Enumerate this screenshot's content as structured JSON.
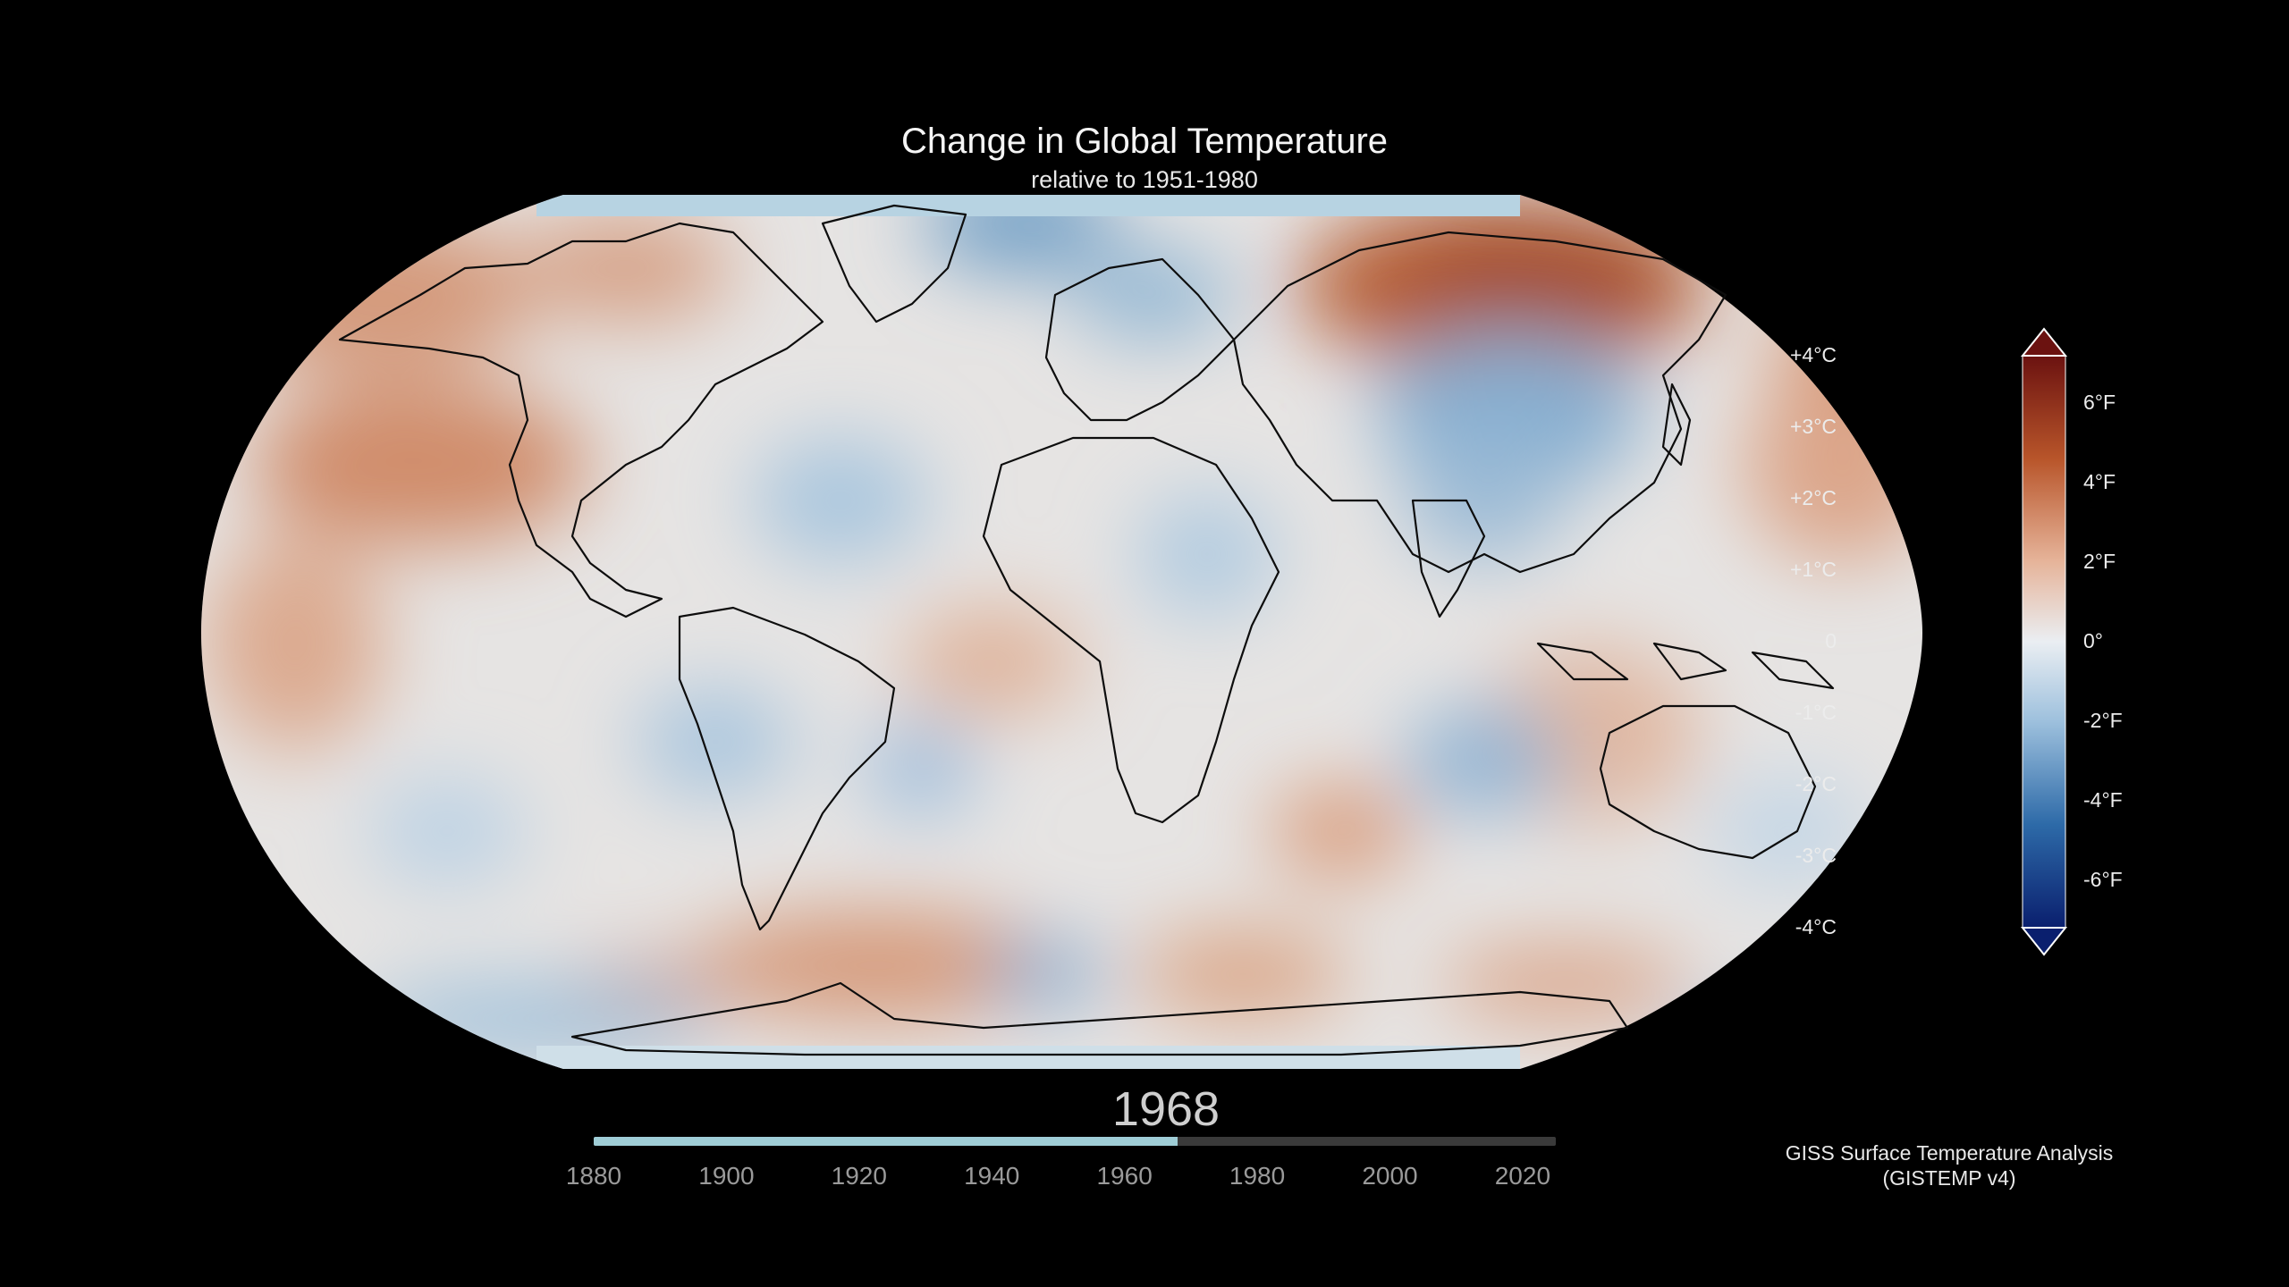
{
  "title": "Change in Global Temperature",
  "subtitle": "relative to 1951-1980",
  "year": "1968",
  "timeline": {
    "start": 1880,
    "end": 2025,
    "current": 1968,
    "ticks": [
      "1880",
      "1900",
      "1920",
      "1940",
      "1960",
      "1980",
      "2000",
      "2020"
    ],
    "fill_color": "#9fcdd6"
  },
  "colorbar": {
    "celsius_labels": [
      "+4°C",
      "+3°C",
      "+2°C",
      "+1°C",
      "0",
      "-1°C",
      "-2°C",
      "-3°C",
      "-4°C"
    ],
    "fahrenheit_labels": [
      "6°F",
      "4°F",
      "2°F",
      "0°",
      "-2°F",
      "-4°F",
      "-6°F"
    ],
    "range_c": [
      -4,
      4
    ],
    "colors": [
      "#0a1f6e",
      "#2d6aa8",
      "#9dc0dd",
      "#eaeef2",
      "#e6b49a",
      "#b8552a",
      "#6b1210"
    ]
  },
  "credit": {
    "line1": "GISS Surface Temperature Analysis",
    "line2": "(GISTEMP v4)"
  },
  "map": {
    "projection": "Robinson",
    "anomaly_colors": {
      "warm": "#c97a57",
      "warm_strong": "#a8502c",
      "neutral": "#e8e6e4",
      "cool": "#8fb6d4",
      "cool_strong": "#5f94c0"
    }
  }
}
